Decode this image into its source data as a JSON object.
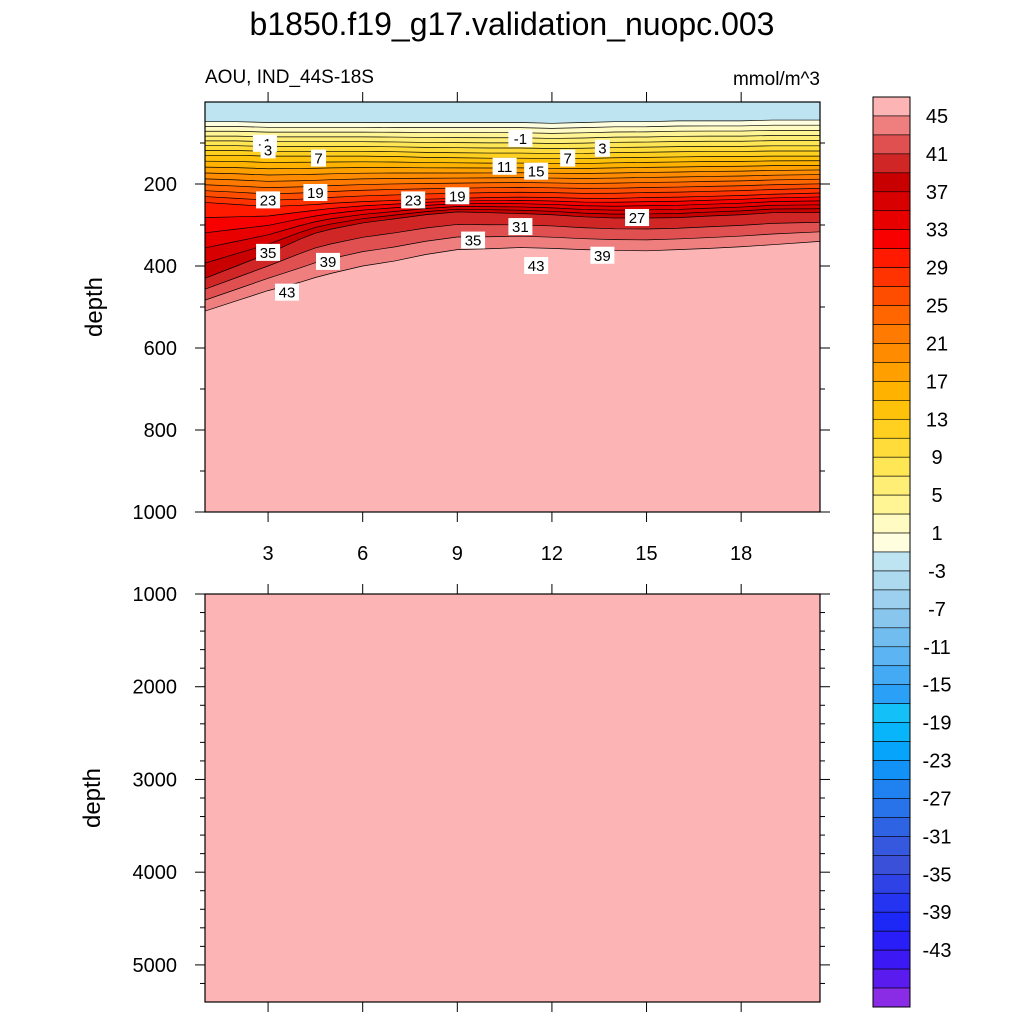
{
  "title": "b1850.f19_g17.validation_nuopc.003",
  "chart_data": [
    {
      "type": "contour",
      "subtitle_left": "AOU, IND_44S-18S",
      "subtitle_right": "mmol/m^3",
      "ylabel": "depth",
      "xlabel": "",
      "xlim": [
        1,
        20.5
      ],
      "ylim": [
        1000,
        0
      ],
      "yticks": [
        200,
        400,
        600,
        800,
        1000
      ],
      "xticks": [
        3,
        6,
        9,
        12,
        15,
        18
      ],
      "x": [
        1,
        2,
        3,
        4,
        4.5,
        5,
        6,
        7,
        8,
        9,
        10,
        11,
        12,
        13,
        14,
        15,
        16,
        17,
        18,
        19,
        20.5
      ],
      "isoline_depths": {
        "surface_-1": [
          48,
          48,
          50,
          50,
          50,
          50,
          50,
          50,
          50,
          50,
          50,
          50,
          52,
          50,
          48,
          48,
          46,
          46,
          46,
          44,
          44
        ],
        "13": [
          130,
          130,
          132,
          132,
          132,
          132,
          132,
          133,
          135,
          136,
          137,
          137,
          138,
          138,
          136,
          135,
          134,
          133,
          133,
          132,
          132
        ],
        "29": [
          245,
          250,
          255,
          252,
          250,
          247,
          243,
          240,
          237,
          235,
          233,
          232,
          233,
          235,
          235,
          233,
          232,
          230,
          228,
          225,
          222
        ],
        "39": [
          430,
          400,
          370,
          335,
          320,
          310,
          295,
          285,
          275,
          268,
          270,
          272,
          275,
          280,
          283,
          283,
          282,
          278,
          275,
          270,
          270
        ],
        "45": [
          510,
          485,
          460,
          440,
          428,
          418,
          400,
          388,
          372,
          360,
          358,
          355,
          357,
          360,
          362,
          363,
          360,
          357,
          353,
          348,
          340
        ]
      },
      "contour_labels": [
        {
          "text": "-1",
          "x": 2.9,
          "y": 102
        },
        {
          "text": "-1",
          "x": 11.0,
          "y": 90
        },
        {
          "text": "3",
          "x": 3.0,
          "y": 118
        },
        {
          "text": "3",
          "x": 13.6,
          "y": 114
        },
        {
          "text": "7",
          "x": 4.6,
          "y": 138
        },
        {
          "text": "7",
          "x": 12.5,
          "y": 138
        },
        {
          "text": "11",
          "x": 10.5,
          "y": 158
        },
        {
          "text": "15",
          "x": 11.5,
          "y": 170
        },
        {
          "text": "19",
          "x": 4.5,
          "y": 222
        },
        {
          "text": "19",
          "x": 9.0,
          "y": 230
        },
        {
          "text": "23",
          "x": 3.0,
          "y": 240
        },
        {
          "text": "23",
          "x": 7.6,
          "y": 240
        },
        {
          "text": "27",
          "x": 14.7,
          "y": 283
        },
        {
          "text": "31",
          "x": 11.0,
          "y": 305
        },
        {
          "text": "35",
          "x": 3.0,
          "y": 368
        },
        {
          "text": "35",
          "x": 9.5,
          "y": 338
        },
        {
          "text": "39",
          "x": 4.9,
          "y": 390
        },
        {
          "text": "39",
          "x": 13.6,
          "y": 375
        },
        {
          "text": "43",
          "x": 11.5,
          "y": 400
        },
        {
          "text": "43",
          "x": 3.6,
          "y": 465
        }
      ]
    },
    {
      "type": "contour",
      "ylabel": "depth",
      "xlim": [
        1,
        20.5
      ],
      "ylim": [
        5400,
        1000
      ],
      "yticks": [
        1000,
        2000,
        3000,
        4000,
        5000
      ],
      "xticks": [
        3,
        6,
        9,
        12,
        15,
        18
      ],
      "fill_value": 45
    }
  ],
  "colorbar": {
    "tick_labels": [
      "45",
      "41",
      "37",
      "33",
      "29",
      "25",
      "21",
      "17",
      "13",
      "9",
      "5",
      "1",
      "-3",
      "-7",
      "-11",
      "-15",
      "-19",
      "-23",
      "-27",
      "-31",
      "-35",
      "-39",
      "-43"
    ],
    "colors": [
      "#FCB4B4",
      "#EF7F7F",
      "#E05050",
      "#D02626",
      "#C80000",
      "#D80000",
      "#E80000",
      "#F80000",
      "#FF1A00",
      "#FF3300",
      "#FF4D00",
      "#FF6600",
      "#FF7A00",
      "#FF8C00",
      "#FFA000",
      "#FFB300",
      "#FFC20A",
      "#FFD020",
      "#FFDC3A",
      "#FFE655",
      "#FFEE75",
      "#FFF595",
      "#FFFBC2",
      "#FFFFE0",
      "#BEE4F2",
      "#AEDAF0",
      "#9CD0EE",
      "#88C6EE",
      "#72BDF0",
      "#5CB4F2",
      "#44AAF4",
      "#2AA0F6",
      "#14C0F8",
      "#08B4FA",
      "#06A4FA",
      "#1292F6",
      "#1F82F0",
      "#2872EA",
      "#2E64E4",
      "#3558DE",
      "#3A50D8",
      "#2F42E6",
      "#2434F0",
      "#1E28F6",
      "#2A1EF8",
      "#3C18F4",
      "#5A1CEE",
      "#8A2CE6"
    ]
  },
  "styles": {
    "deep_fill": "#FCB4B4",
    "surface_fill": "#BEE4F2"
  }
}
